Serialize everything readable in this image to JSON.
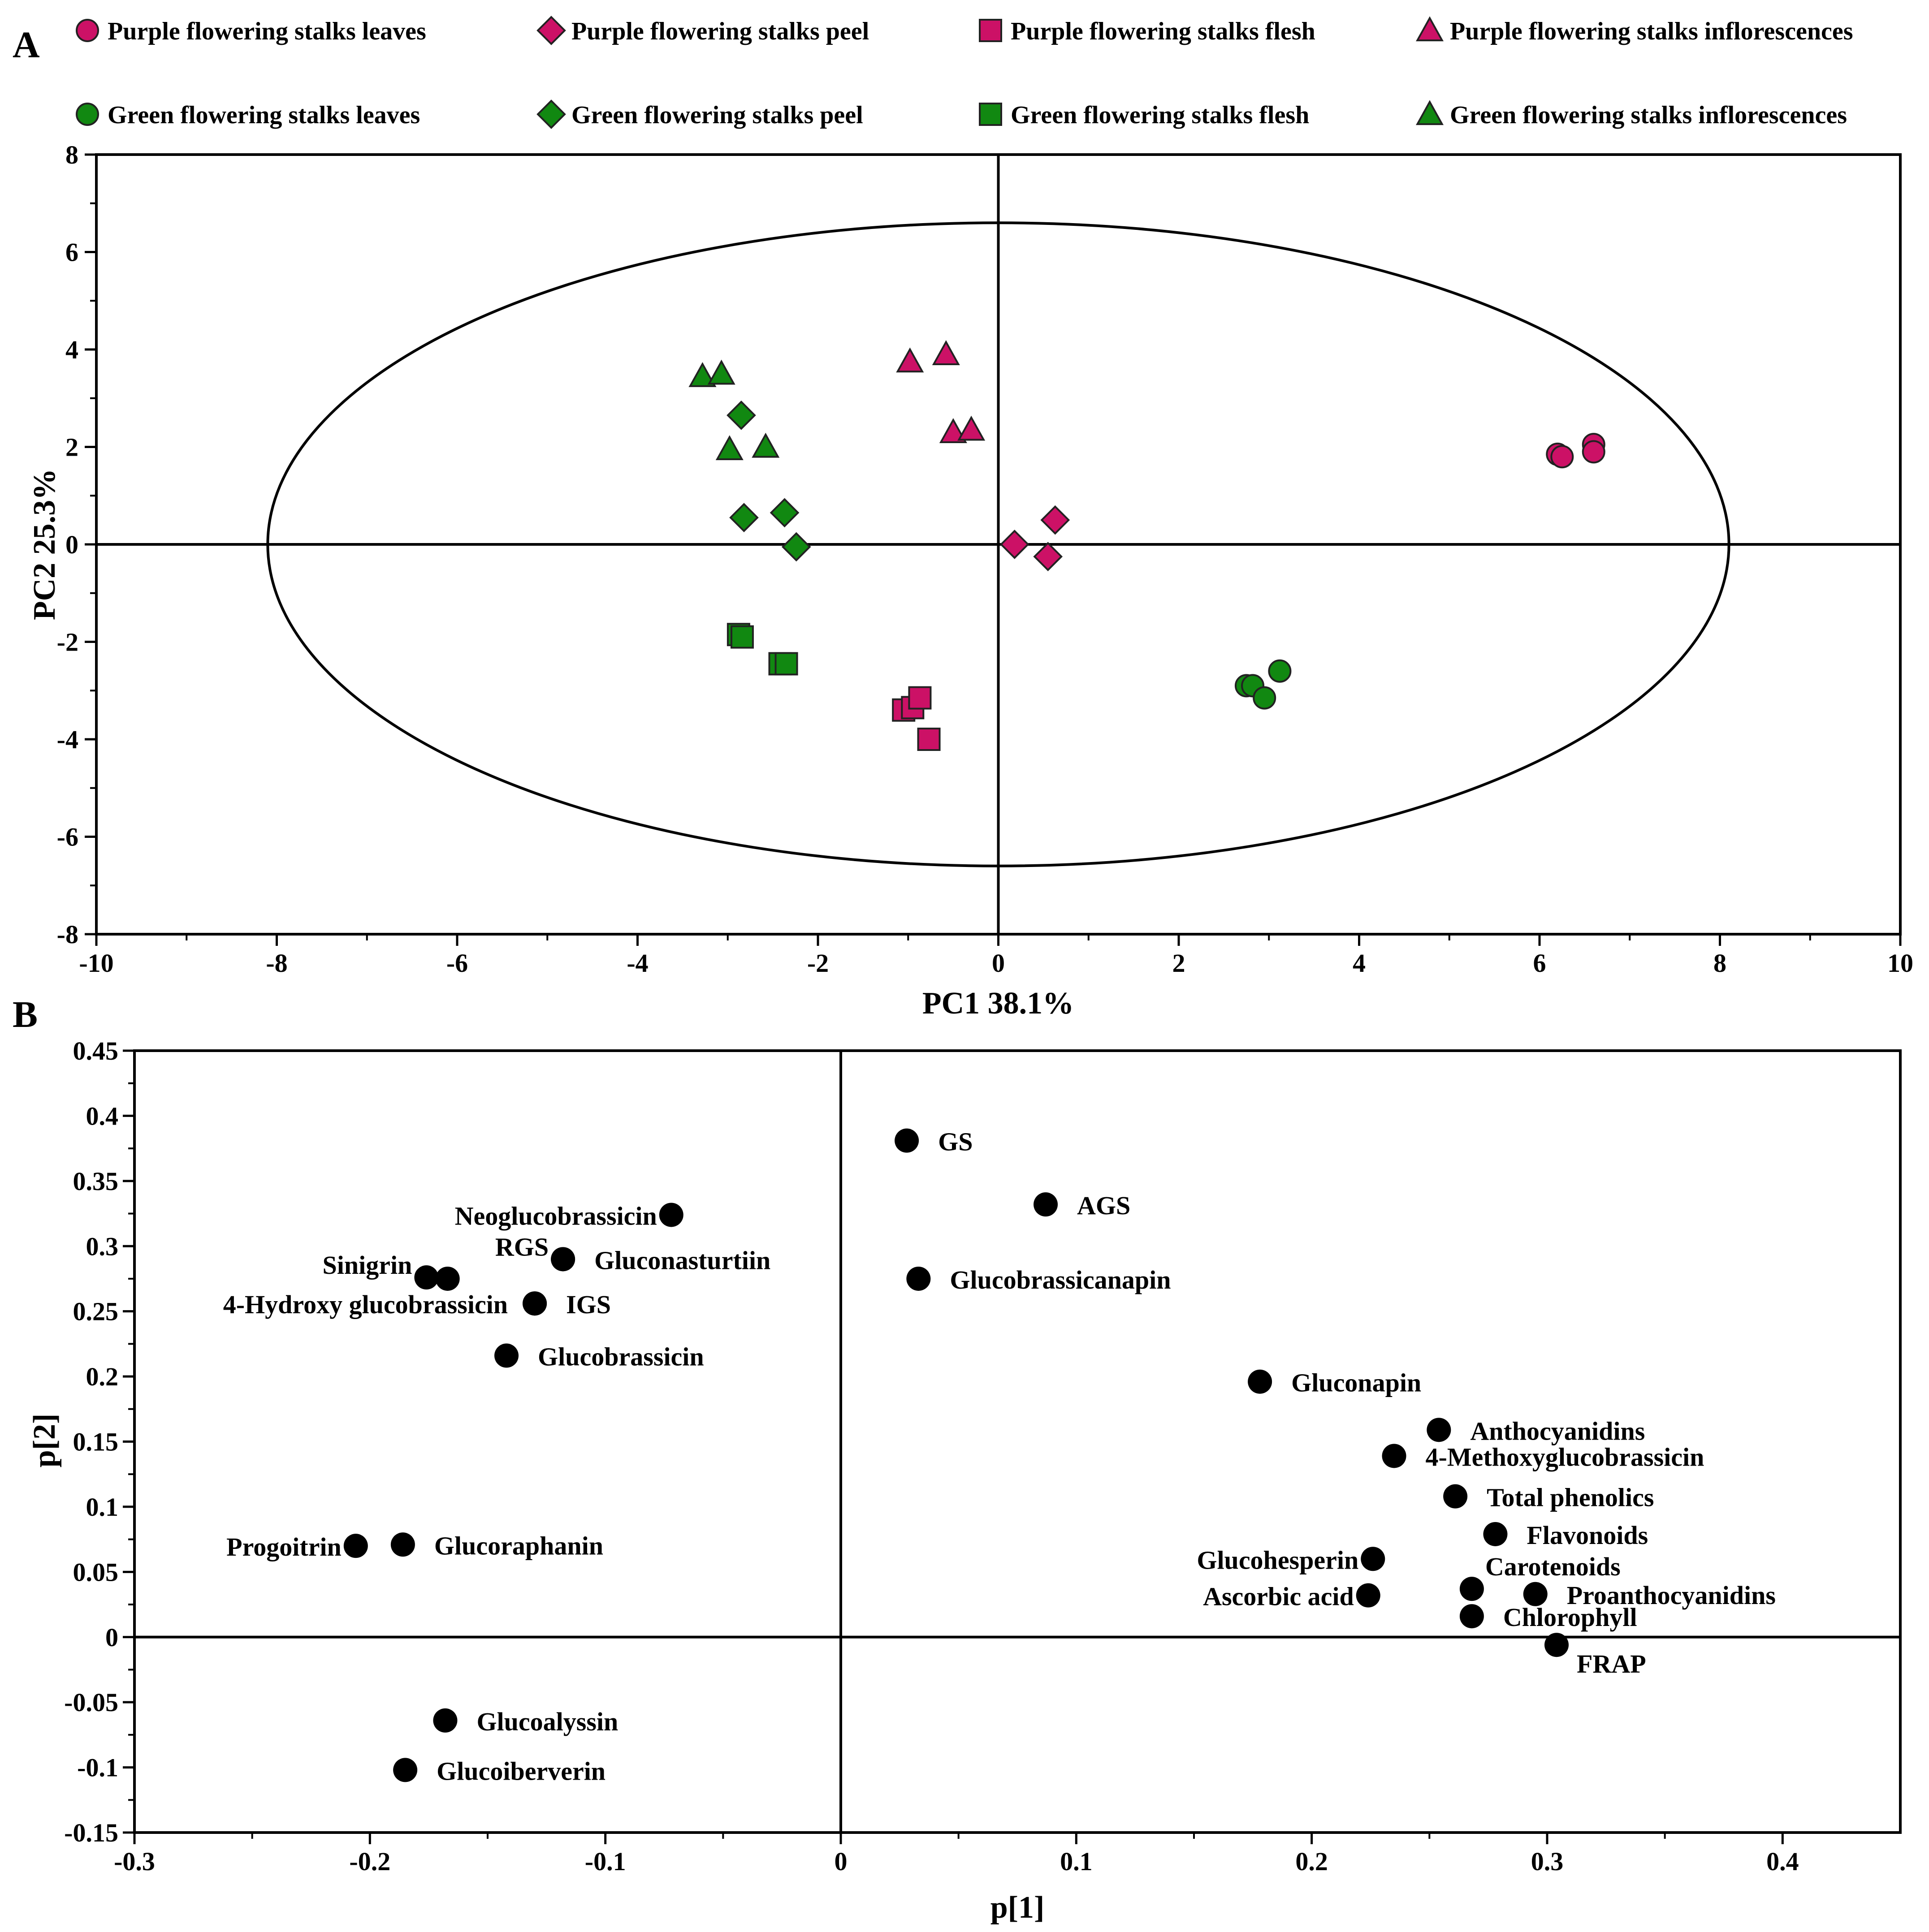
{
  "colors": {
    "purple": "#CC1166",
    "green": "#118811",
    "loading": "#000000",
    "outline": "#222222"
  },
  "chart_data": [
    {
      "panel": "A",
      "type": "scatter",
      "title": "",
      "xlabel": "PC1 38.1%",
      "ylabel": "PC2 25.3%",
      "xlim": [
        -10,
        10
      ],
      "ylim": [
        -8,
        8
      ],
      "xticks": [
        -10,
        -8,
        -6,
        -4,
        -2,
        0,
        2,
        4,
        6,
        8,
        10
      ],
      "yticks": [
        -8,
        -6,
        -4,
        -2,
        0,
        2,
        4,
        6,
        8
      ],
      "ellipse": {
        "center": [
          0,
          0
        ],
        "rx": 8.1,
        "ry": 6.6
      },
      "legend_position": "top",
      "series": [
        {
          "name": "Purple flowering stalks leaves",
          "color": "purple",
          "marker": "circle",
          "points": [
            [
              6.2,
              1.85
            ],
            [
              6.25,
              1.8
            ],
            [
              6.6,
              2.05
            ],
            [
              6.6,
              1.9
            ]
          ]
        },
        {
          "name": "Purple flowering stalks peel",
          "color": "purple",
          "marker": "diamond",
          "points": [
            [
              0.18,
              0.0
            ],
            [
              0.55,
              -0.25
            ],
            [
              0.63,
              0.5
            ]
          ]
        },
        {
          "name": "Purple flowering stalks flesh",
          "color": "purple",
          "marker": "square",
          "points": [
            [
              -1.05,
              -3.4
            ],
            [
              -0.95,
              -3.35
            ],
            [
              -0.87,
              -3.15
            ],
            [
              -0.77,
              -4.0
            ]
          ]
        },
        {
          "name": "Purple flowering stalks inflorescences",
          "color": "purple",
          "marker": "triangle",
          "points": [
            [
              -0.98,
              3.75
            ],
            [
              -0.58,
              3.9
            ],
            [
              -0.5,
              2.3
            ],
            [
              -0.3,
              2.35
            ]
          ]
        },
        {
          "name": "Green flowering stalks leaves",
          "color": "green",
          "marker": "circle",
          "points": [
            [
              2.75,
              -2.9
            ],
            [
              2.82,
              -2.9
            ],
            [
              2.95,
              -3.15
            ],
            [
              3.12,
              -2.6
            ]
          ]
        },
        {
          "name": "Green flowering stalks peel",
          "color": "green",
          "marker": "diamond",
          "points": [
            [
              -2.85,
              2.65
            ],
            [
              -2.82,
              0.55
            ],
            [
              -2.37,
              0.65
            ],
            [
              -2.24,
              -0.05
            ]
          ]
        },
        {
          "name": "Green flowering stalks flesh",
          "color": "green",
          "marker": "square",
          "points": [
            [
              -2.88,
              -1.85
            ],
            [
              -2.84,
              -1.9
            ],
            [
              -2.42,
              -2.45
            ],
            [
              -2.35,
              -2.45
            ]
          ]
        },
        {
          "name": "Green flowering stalks inflorescences",
          "color": "green",
          "marker": "triangle",
          "points": [
            [
              -3.28,
              3.45
            ],
            [
              -3.07,
              3.5
            ],
            [
              -2.98,
              1.95
            ],
            [
              -2.58,
              2.0
            ]
          ]
        }
      ]
    },
    {
      "panel": "B",
      "type": "scatter",
      "title": "",
      "xlabel": "p[1]",
      "ylabel": "p[2]",
      "xlim": [
        -0.3,
        0.45
      ],
      "ylim": [
        -0.15,
        0.45
      ],
      "xticks": [
        "-0.3",
        "-0.2",
        "-0.1",
        "0",
        "0.1",
        "0.2",
        "0.3",
        "0.4"
      ],
      "yticks": [
        "-0.15",
        "-0.1",
        "-0.05",
        "0",
        "0.05",
        "0.1",
        "0.15",
        "0.2",
        "0.25",
        "0.3",
        "0.35",
        "0.4",
        "0.45"
      ],
      "points": [
        {
          "label": "GS",
          "x": 0.028,
          "y": 0.381,
          "anchor": "right"
        },
        {
          "label": "AGS",
          "x": 0.087,
          "y": 0.332,
          "anchor": "right"
        },
        {
          "label": "Glucobrassicanapin",
          "x": 0.033,
          "y": 0.275,
          "anchor": "right"
        },
        {
          "label": "Neoglucobrassicin",
          "x": -0.072,
          "y": 0.324,
          "anchor": "left"
        },
        {
          "label": "RGS",
          "x": -0.118,
          "y": 0.29,
          "anchor": "left-up"
        },
        {
          "label": "Gluconasturtiin",
          "x": -0.118,
          "y": 0.29,
          "anchor": "right"
        },
        {
          "label": "Sinigrin",
          "x": -0.176,
          "y": 0.276,
          "anchor": "left-up"
        },
        {
          "label": "",
          "x": -0.167,
          "y": 0.275,
          "anchor": "none"
        },
        {
          "label": "4-Hydroxy glucobrassicin",
          "x": -0.13,
          "y": 0.256,
          "anchor": "left-far"
        },
        {
          "label": "IGS",
          "x": -0.13,
          "y": 0.256,
          "anchor": "right"
        },
        {
          "label": "Glucobrassicin",
          "x": -0.142,
          "y": 0.216,
          "anchor": "right"
        },
        {
          "label": "Gluconapin",
          "x": 0.178,
          "y": 0.196,
          "anchor": "right"
        },
        {
          "label": "Anthocyanidins",
          "x": 0.254,
          "y": 0.159,
          "anchor": "right"
        },
        {
          "label": "4-Methoxyglucobrassicin",
          "x": 0.235,
          "y": 0.139,
          "anchor": "right"
        },
        {
          "label": "Total phenolics",
          "x": 0.261,
          "y": 0.108,
          "anchor": "right"
        },
        {
          "label": "Flavonoids",
          "x": 0.278,
          "y": 0.079,
          "anchor": "right"
        },
        {
          "label": "Glucohesperin",
          "x": 0.226,
          "y": 0.06,
          "anchor": "left"
        },
        {
          "label": "Carotenoids",
          "x": 0.268,
          "y": 0.037,
          "anchor": "right-up"
        },
        {
          "label": "Proanthocyanidins",
          "x": 0.295,
          "y": 0.033,
          "anchor": "right"
        },
        {
          "label": "Ascorbic acid",
          "x": 0.224,
          "y": 0.032,
          "anchor": "left"
        },
        {
          "label": "Chlorophyll",
          "x": 0.268,
          "y": 0.016,
          "anchor": "right"
        },
        {
          "label": "FRAP",
          "x": 0.304,
          "y": -0.006,
          "anchor": "right-down"
        },
        {
          "label": "Progoitrin",
          "x": -0.206,
          "y": 0.07,
          "anchor": "left"
        },
        {
          "label": "Glucoraphanin",
          "x": -0.186,
          "y": 0.071,
          "anchor": "right"
        },
        {
          "label": "Glucoalyssin",
          "x": -0.168,
          "y": -0.064,
          "anchor": "right"
        },
        {
          "label": "Glucoiberverin",
          "x": -0.185,
          "y": -0.102,
          "anchor": "right"
        }
      ]
    }
  ]
}
